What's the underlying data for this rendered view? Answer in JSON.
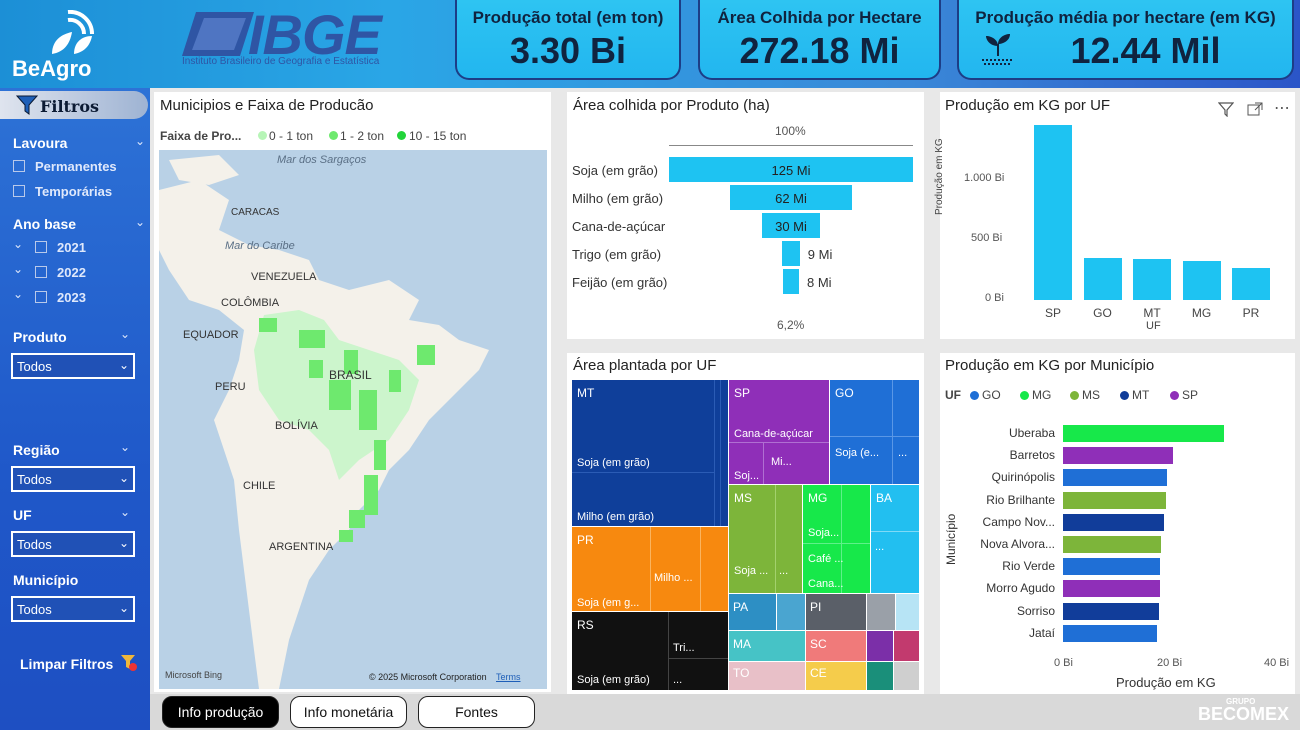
{
  "brand": {
    "name": "BeAgro",
    "ibge": "IBGE",
    "ibge_sub": "Instituto Brasileiro de Geografia e Estatística",
    "footer": "BECOMEX",
    "footer_small": "GRUPO"
  },
  "kpis": [
    {
      "title": "Produção total (em ton)",
      "value": "3.30 Bi"
    },
    {
      "title": "Área Colhida por Hectare",
      "value": "272.18 Mi"
    },
    {
      "title": "Produção média por hectare (em KG)",
      "value": "12.44 Mil"
    }
  ],
  "sidebar": {
    "title": "Filtros",
    "lavoura": {
      "label": "Lavoura",
      "options": [
        "Permanentes",
        "Temporárias"
      ]
    },
    "ano": {
      "label": "Ano base",
      "options": [
        "2021",
        "2022",
        "2023"
      ]
    },
    "produto": {
      "label": "Produto",
      "value": "Todos"
    },
    "regiao": {
      "label": "Região",
      "value": "Todos"
    },
    "uf": {
      "label": "UF",
      "value": "Todos"
    },
    "municipio": {
      "label": "Município",
      "value": "Todos"
    },
    "clear": "Limpar Filtros"
  },
  "map": {
    "title": "Municipios e Faixa de Producão",
    "legend_label": "Faixa de Pro...",
    "legend": [
      "0 - 1 ton",
      "1 - 2 ton",
      "10 - 15 ton"
    ],
    "labels": {
      "sargacos": "Mar dos Sargaços",
      "caribe": "Mar do Caribe",
      "venezuela": "VENEZUELA",
      "caracas": "CARACAS",
      "colombia": "COLÔMBIA",
      "equador": "EQUADOR",
      "peru": "PERU",
      "brasil": "BRASIL",
      "bolivia": "BOLÍVIA",
      "chile": "CHILE",
      "argentina": "ARGENTINA"
    },
    "credit": "© 2025 Microsoft Corporation",
    "terms": "Terms",
    "bing": "Microsoft Bing"
  },
  "funnel": {
    "title": "Área colhida por Produto (ha)",
    "top_pct": "100%",
    "bottom_pct": "6,2%",
    "chart_data": {
      "type": "bar",
      "categories": [
        "Soja (em grão)",
        "Milho (em grão)",
        "Cana-de-açúcar",
        "Trigo (em grão)",
        "Feijão (em grão)"
      ],
      "values": [
        125,
        62,
        30,
        9,
        8
      ],
      "labels": [
        "125 Mi",
        "62 Mi",
        "30 Mi",
        "9 Mi",
        "8 Mi"
      ]
    }
  },
  "uf_bar": {
    "title": "Produção em KG por UF",
    "ylabel": "Produção em KG",
    "xlabel": "UF",
    "ticks": [
      "0 Bi",
      "500 Bi",
      "1.000 Bi"
    ],
    "chart_data": {
      "type": "bar",
      "categories": [
        "SP",
        "GO",
        "MT",
        "MG",
        "PR"
      ],
      "values": [
        1360,
        330,
        320,
        305,
        250
      ],
      "ylim": [
        0,
        1400
      ]
    }
  },
  "treemap": {
    "title": "Área plantada por UF",
    "cells": {
      "mt": "MT",
      "mt_soja": "Soja (em grão)",
      "mt_milho": "Milho (em grão)",
      "sp": "SP",
      "sp_cana": "Cana-de-açúcar",
      "sp_soj": "Soj...",
      "sp_mi": "Mi...",
      "go": "GO",
      "go_soja": "Soja (e...",
      "go_dots": "...",
      "ms": "MS",
      "ms_soja": "Soja ...",
      "ms_dots": "...",
      "mg": "MG",
      "mg_soja": "Soja...",
      "mg_cafe": "Café ...",
      "mg_cana": "Cana...",
      "ba": "BA",
      "ba_dots": "...",
      "pr": "PR",
      "pr_milho": "Milho ...",
      "pr_soja": "Soja (em g...",
      "pa": "PA",
      "pi": "PI",
      "ma": "MA",
      "sc": "SC",
      "to": "TO",
      "ce": "CE",
      "rs": "RS",
      "rs_tri": "Tri...",
      "rs_soja": "Soja (em grão)",
      "rs_dots": "..."
    }
  },
  "mun_bar": {
    "title": "Produção em KG por Município",
    "legend_label": "UF",
    "legend": [
      {
        "name": "GO",
        "color": "#1f6fd6"
      },
      {
        "name": "MG",
        "color": "#17e84a"
      },
      {
        "name": "MS",
        "color": "#7db53a"
      },
      {
        "name": "MT",
        "color": "#113d9a"
      },
      {
        "name": "SP",
        "color": "#8f2fb8"
      }
    ],
    "ylabel": "Município",
    "xlabel": "Produção em KG",
    "ticks": [
      "0 Bi",
      "20 Bi",
      "40 Bi"
    ],
    "chart_data": {
      "type": "bar",
      "categories": [
        "Uberaba",
        "Barretos",
        "Quirinópolis",
        "Rio Brilhante",
        "Campo Nov...",
        "Nova Alvora...",
        "Rio Verde",
        "Morro Agudo",
        "Sorriso",
        "Jataí"
      ],
      "values": [
        30,
        20.5,
        19.3,
        19.2,
        18.8,
        18.2,
        18.1,
        18,
        17.8,
        17.4
      ],
      "colors": [
        "#17e84a",
        "#8f2fb8",
        "#1f6fd6",
        "#7db53a",
        "#113d9a",
        "#7db53a",
        "#1f6fd6",
        "#8f2fb8",
        "#113d9a",
        "#1f6fd6"
      ],
      "xlim": [
        0,
        40
      ]
    }
  },
  "tabs": [
    "Info produção",
    "Info monetária",
    "Fontes"
  ]
}
